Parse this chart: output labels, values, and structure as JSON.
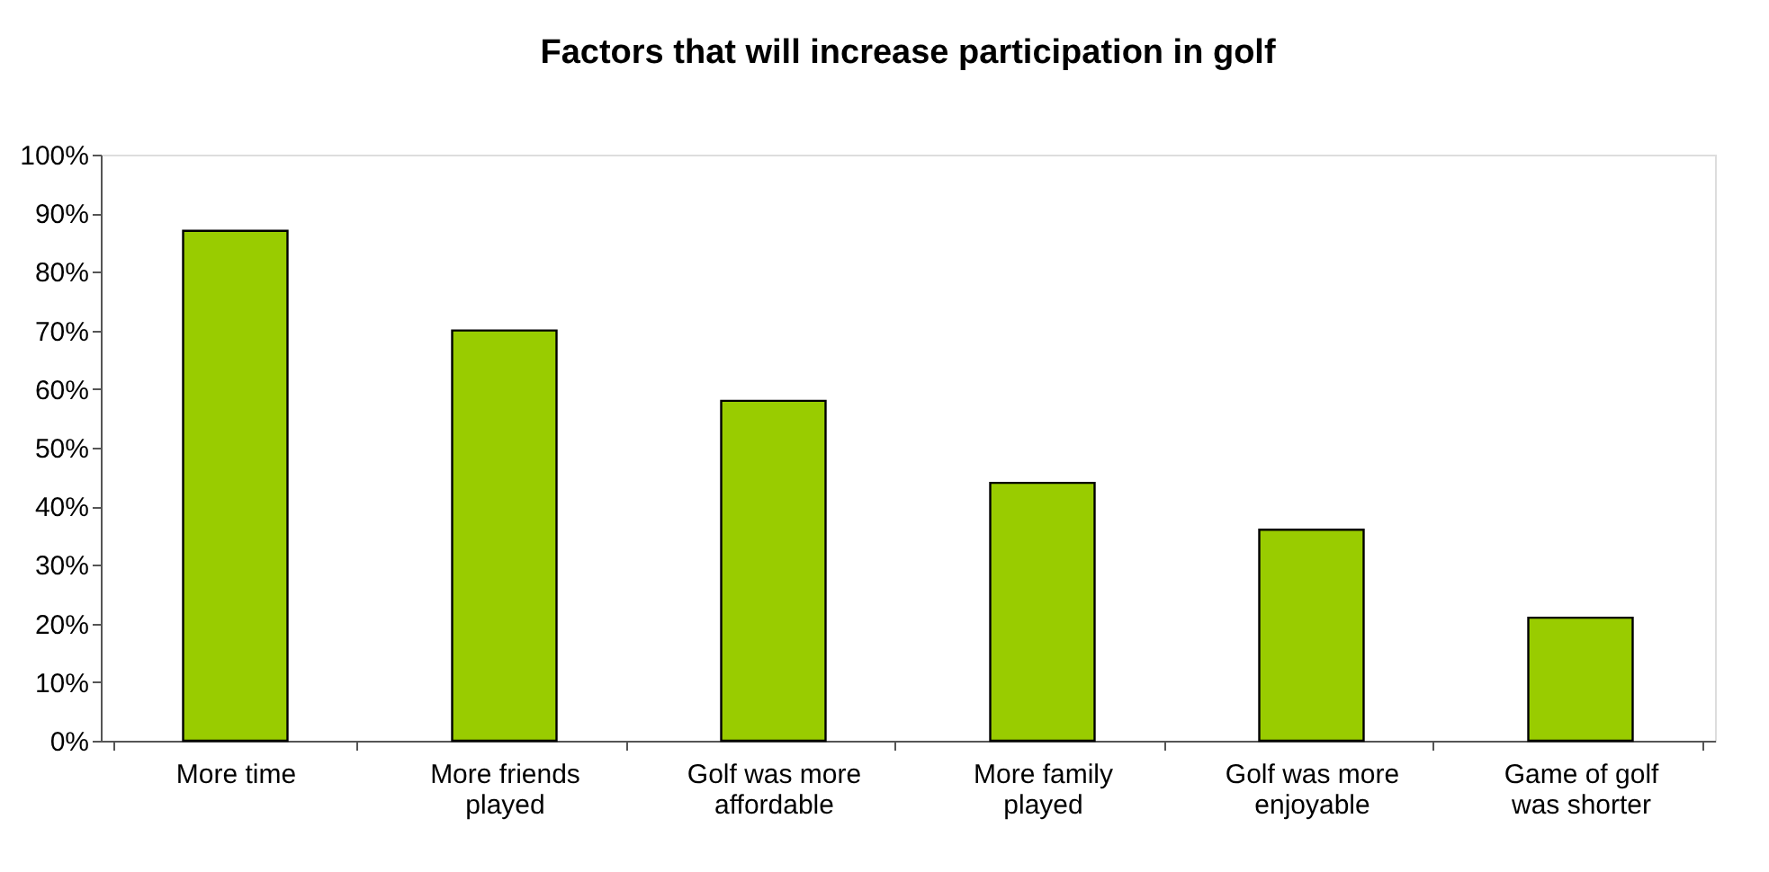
{
  "chart_data": {
    "type": "bar",
    "title": "Factors that will increase participation in golf",
    "categories": [
      "More time",
      "More friends played",
      "Golf was more affordable",
      "More family played",
      "Golf was more enjoyable",
      "Game of golf was shorter"
    ],
    "values": [
      87,
      70,
      58,
      44,
      36,
      21
    ],
    "color": "#99cc00",
    "ylim": [
      0,
      100
    ],
    "yticks": [
      {
        "value": 0,
        "label": "0%"
      },
      {
        "value": 10,
        "label": "10%"
      },
      {
        "value": 20,
        "label": "20%"
      },
      {
        "value": 30,
        "label": "30%"
      },
      {
        "value": 40,
        "label": "40%"
      },
      {
        "value": 50,
        "label": "50%"
      },
      {
        "value": 60,
        "label": "60%"
      },
      {
        "value": 70,
        "label": "70%"
      },
      {
        "value": 80,
        "label": "80%"
      },
      {
        "value": 90,
        "label": "90%"
      },
      {
        "value": 100,
        "label": "100%"
      }
    ],
    "grid": false
  }
}
